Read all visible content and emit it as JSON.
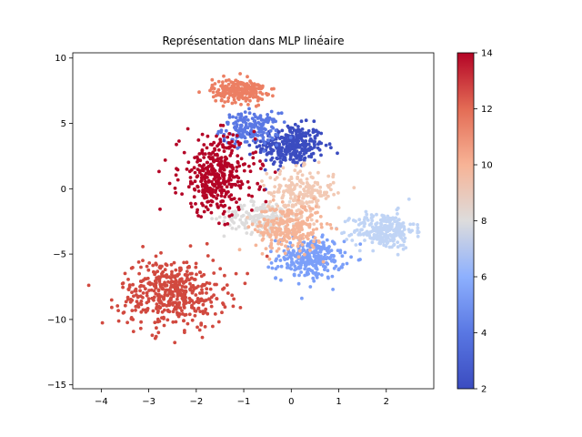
{
  "chart_data": {
    "type": "scatter",
    "title": "Représentation dans MLP linéaire",
    "xlabel": "",
    "ylabel": "",
    "xlim": [
      -4.6,
      3.0
    ],
    "ylim": [
      -15.3,
      10.4
    ],
    "x_ticks": [
      -4,
      -3,
      -2,
      -1,
      0,
      1,
      2
    ],
    "y_ticks": [
      -15,
      -10,
      -5,
      0,
      5,
      10
    ],
    "grid": false,
    "legend": "none",
    "colormap": "coolwarm",
    "colorbar": {
      "min": 2,
      "max": 14,
      "ticks": [
        2,
        4,
        6,
        8,
        10,
        12,
        14
      ]
    },
    "clusters": [
      {
        "label": 2,
        "color": "#3b4cc0",
        "center": [
          0.0,
          3.3
        ],
        "spread": [
          0.35,
          0.8
        ],
        "count": 320
      },
      {
        "label": 4,
        "color": "#5a78e4",
        "center": [
          -0.85,
          4.6
        ],
        "spread": [
          0.3,
          0.6
        ],
        "count": 180
      },
      {
        "label": 5,
        "color": "#7b9ff9",
        "center": [
          0.4,
          -5.3
        ],
        "spread": [
          0.35,
          0.8
        ],
        "count": 280
      },
      {
        "label": 6,
        "color": "#c0d4f5",
        "center": [
          1.95,
          -3.2
        ],
        "spread": [
          0.32,
          0.7
        ],
        "count": 260
      },
      {
        "label": 8,
        "color": "#dddcdc",
        "center": [
          -0.6,
          -2.2
        ],
        "spread": [
          0.4,
          0.6
        ],
        "count": 180
      },
      {
        "label": 9,
        "color": "#f2c9b4",
        "center": [
          0.2,
          -0.3
        ],
        "spread": [
          0.35,
          0.9
        ],
        "count": 200
      },
      {
        "label": 10,
        "color": "#f5b497",
        "center": [
          -0.05,
          -3.0
        ],
        "spread": [
          0.35,
          0.9
        ],
        "count": 260
      },
      {
        "label": 11,
        "color": "#ec7f63",
        "center": [
          -1.1,
          7.5
        ],
        "spread": [
          0.28,
          0.45
        ],
        "count": 240
      },
      {
        "label": 13,
        "color": "#d1493f",
        "center": [
          -2.5,
          -8.0
        ],
        "spread": [
          0.55,
          1.3
        ],
        "count": 460
      },
      {
        "label": 14,
        "color": "#b40426",
        "center": [
          -1.55,
          1.0
        ],
        "spread": [
          0.4,
          1.5
        ],
        "count": 380
      }
    ]
  }
}
